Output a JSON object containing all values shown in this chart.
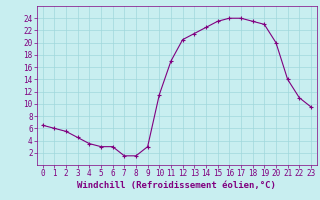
{
  "x": [
    0,
    1,
    2,
    3,
    4,
    5,
    6,
    7,
    8,
    9,
    10,
    11,
    12,
    13,
    14,
    15,
    16,
    17,
    18,
    19,
    20,
    21,
    22,
    23
  ],
  "y": [
    6.5,
    6.0,
    5.5,
    4.5,
    3.5,
    3.0,
    3.0,
    1.5,
    1.5,
    3.0,
    11.5,
    17.0,
    20.5,
    21.5,
    22.5,
    23.5,
    24.0,
    24.0,
    23.5,
    23.0,
    20.0,
    14.0,
    11.0,
    9.5
  ],
  "line_color": "#800080",
  "marker": "+",
  "marker_size": 3,
  "bg_color": "#c8eef0",
  "grid_color": "#a0d8dc",
  "xlabel": "Windchill (Refroidissement éolien,°C)",
  "xlabel_color": "#800080",
  "tick_color": "#800080",
  "spine_color": "#800080",
  "xlim": [
    -0.5,
    23.5
  ],
  "ylim": [
    0,
    26
  ],
  "yticks": [
    2,
    4,
    6,
    8,
    10,
    12,
    14,
    16,
    18,
    20,
    22,
    24
  ],
  "xticks": [
    0,
    1,
    2,
    3,
    4,
    5,
    6,
    7,
    8,
    9,
    10,
    11,
    12,
    13,
    14,
    15,
    16,
    17,
    18,
    19,
    20,
    21,
    22,
    23
  ],
  "font_size": 5.5,
  "xlabel_fontsize": 6.5
}
